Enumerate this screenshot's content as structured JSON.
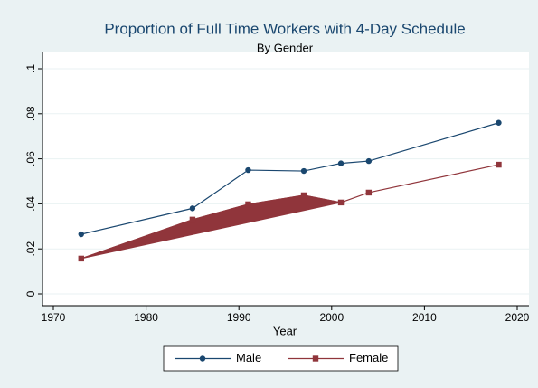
{
  "chart_data": {
    "type": "line",
    "title": "Proportion of Full Time Workers with 4-Day Schedule",
    "subtitle": "By Gender",
    "x_label": "Year",
    "x": [
      1973,
      1985,
      1991,
      1997,
      2001,
      2004,
      2018
    ],
    "series": [
      {
        "name": "Male",
        "color": "#1a476f",
        "values": [
          0.0265,
          0.038,
          0.055,
          0.0546,
          0.058,
          0.059,
          0.076
        ]
      },
      {
        "name": "Female",
        "color": "#90353b",
        "values": [
          0.0157,
          0.033,
          0.0398,
          0.0438,
          0.0406,
          0.045,
          0.0574
        ]
      }
    ],
    "xlim": [
      1970,
      2020
    ],
    "xticks": [
      1970,
      1980,
      1990,
      2000,
      2010,
      2020
    ],
    "ylim": [
      0,
      0.1
    ],
    "yticks": [
      0,
      {
        "value": 0.02,
        "label": ".02"
      },
      {
        "value": 0.04,
        "label": ".04"
      },
      {
        "value": 0.06,
        "label": ".06"
      },
      {
        "value": 0.08,
        "label": ".08"
      },
      {
        "value": 0.1,
        "label": ".1"
      }
    ],
    "grid": true,
    "legend": "bottom"
  }
}
